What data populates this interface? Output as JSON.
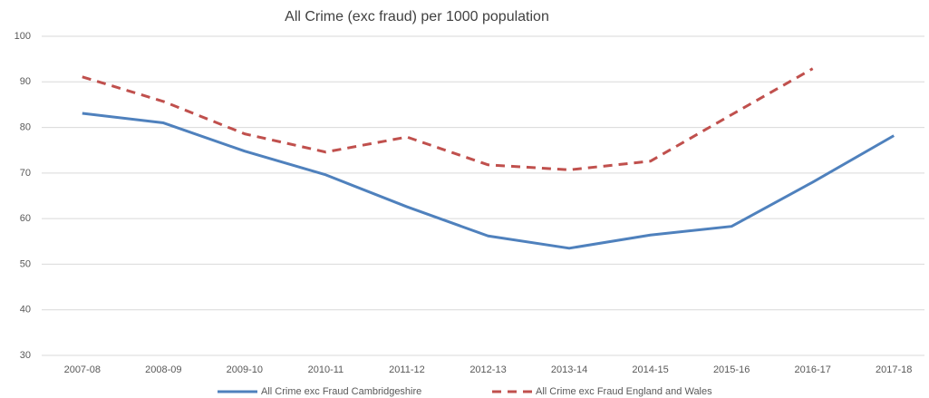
{
  "chart_data": {
    "type": "line",
    "title": "All Crime (exc fraud) per 1000 population",
    "categories": [
      "2007-08",
      "2008-09",
      "2009-10",
      "2010-11",
      "2011-12",
      "2012-13",
      "2013-14",
      "2014-15",
      "2015-16",
      "2016-17",
      "2017-18"
    ],
    "series": [
      {
        "name": "All Crime exc Fraud Cambridgeshire",
        "color": "#4f81bd",
        "dashed": false,
        "values": [
          83.1,
          81.0,
          74.8,
          69.6,
          62.6,
          56.2,
          53.5,
          56.4,
          58.3,
          68.0,
          78.2
        ]
      },
      {
        "name": "All Crime exc Fraud England and Wales",
        "color": "#c0504d",
        "dashed": true,
        "values": [
          91.1,
          85.7,
          78.6,
          74.6,
          77.9,
          71.8,
          70.7,
          72.6,
          82.8,
          92.9,
          null
        ]
      }
    ],
    "ylim": [
      30,
      100
    ],
    "yticks": [
      30,
      40,
      50,
      60,
      70,
      80,
      90,
      100
    ],
    "grid": true,
    "legend": "bottom"
  }
}
